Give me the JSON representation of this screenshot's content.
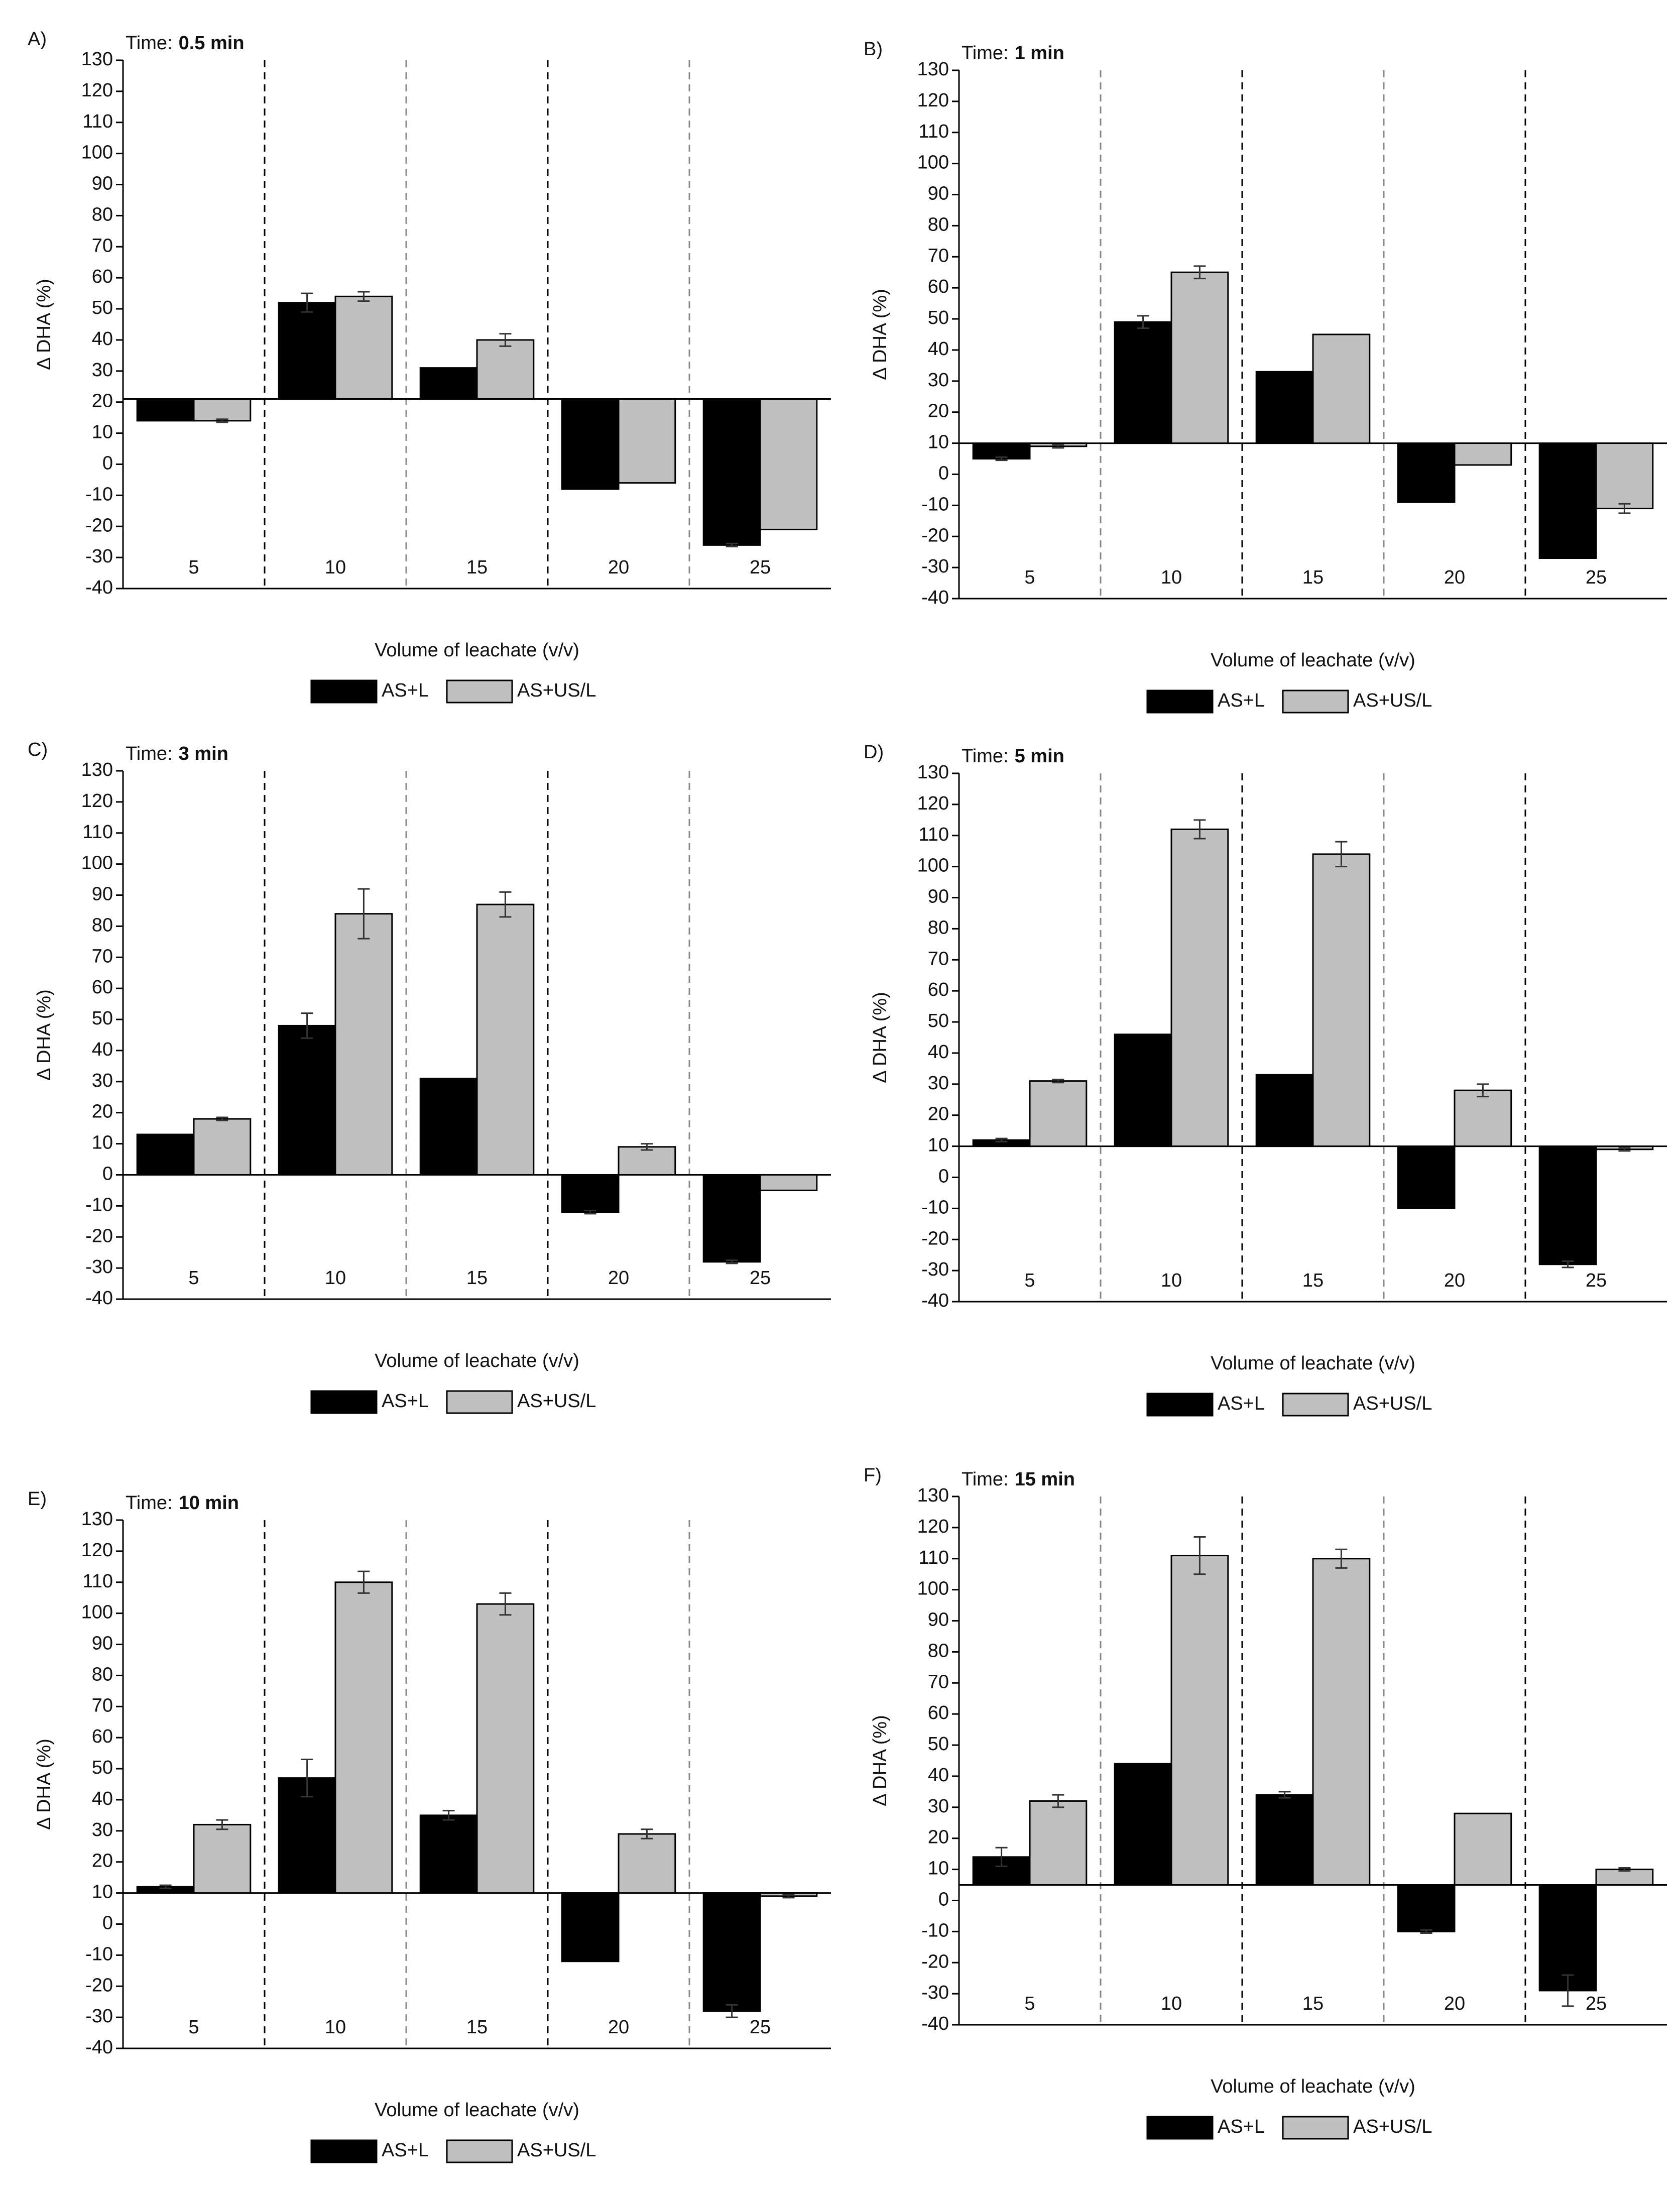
{
  "chart_data": [
    {
      "type": "bar",
      "panel": "A)",
      "time_label": "Time:",
      "title": "0.5 min",
      "baseline": 21,
      "categories": [
        "5",
        "10",
        "15",
        "20",
        "25"
      ],
      "series": [
        {
          "name": "AS+L",
          "color": "#000000",
          "values": [
            14,
            52,
            31,
            -8,
            -26
          ],
          "errors": [
            0,
            3,
            0,
            0,
            0.5
          ]
        },
        {
          "name": "AS+US/L",
          "color": "#c0c0c0",
          "values": [
            14,
            54,
            40,
            -6,
            -21
          ],
          "errors": [
            0.5,
            1.5,
            2,
            0,
            0
          ]
        }
      ],
      "ylim": [
        -40,
        130
      ],
      "yticks": [
        -40,
        -30,
        -20,
        -10,
        0,
        10,
        20,
        30,
        40,
        50,
        60,
        70,
        80,
        90,
        100,
        110,
        120,
        130
      ],
      "xlabel": "Volume of leachate (v/v)",
      "ylabel": "Δ DHA (%)"
    },
    {
      "type": "bar",
      "panel": "B)",
      "time_label": "Time:",
      "title": "1 min",
      "baseline": 10,
      "categories": [
        "5",
        "10",
        "15",
        "20",
        "25"
      ],
      "series": [
        {
          "name": "AS+L",
          "color": "#000000",
          "values": [
            5,
            49,
            33,
            -9,
            -27
          ],
          "errors": [
            0.5,
            2,
            0,
            0,
            0
          ]
        },
        {
          "name": "AS+US/L",
          "color": "#c0c0c0",
          "values": [
            9,
            65,
            45,
            3,
            -11
          ],
          "errors": [
            0.5,
            2,
            0,
            0,
            1.5
          ]
        }
      ],
      "ylim": [
        -40,
        130
      ],
      "yticks": [
        -40,
        -30,
        -20,
        -10,
        0,
        10,
        20,
        30,
        40,
        50,
        60,
        70,
        80,
        90,
        100,
        110,
        120,
        130
      ],
      "xlabel": "Volume of leachate (v/v)",
      "ylabel": "Δ DHA (%)"
    },
    {
      "type": "bar",
      "panel": "C)",
      "time_label": "Time:",
      "title": "3 min",
      "baseline": 0,
      "categories": [
        "5",
        "10",
        "15",
        "20",
        "25"
      ],
      "series": [
        {
          "name": "AS+L",
          "color": "#000000",
          "values": [
            13,
            48,
            31,
            -12,
            -28
          ],
          "errors": [
            0,
            4,
            0,
            0.5,
            0.5
          ]
        },
        {
          "name": "AS+US/L",
          "color": "#c0c0c0",
          "values": [
            18,
            84,
            87,
            9,
            -5
          ],
          "errors": [
            0.5,
            8,
            4,
            1,
            0
          ]
        }
      ],
      "ylim": [
        -40,
        130
      ],
      "yticks": [
        -40,
        -30,
        -20,
        -10,
        0,
        10,
        20,
        30,
        40,
        50,
        60,
        70,
        80,
        90,
        100,
        110,
        120,
        130
      ],
      "xlabel": "Volume of leachate (v/v)",
      "ylabel": "Δ DHA (%)"
    },
    {
      "type": "bar",
      "panel": "D)",
      "time_label": "Time:",
      "title": "5 min",
      "baseline": 10,
      "categories": [
        "5",
        "10",
        "15",
        "20",
        "25"
      ],
      "series": [
        {
          "name": "AS+L",
          "color": "#000000",
          "values": [
            12,
            46,
            33,
            -10,
            -28
          ],
          "errors": [
            0.5,
            0,
            0,
            0,
            1
          ]
        },
        {
          "name": "AS+US/L",
          "color": "#c0c0c0",
          "values": [
            31,
            112,
            104,
            28,
            9
          ],
          "errors": [
            0.5,
            3,
            4,
            2,
            0.5
          ]
        }
      ],
      "ylim": [
        -40,
        130
      ],
      "yticks": [
        -40,
        -30,
        -20,
        -10,
        0,
        10,
        20,
        30,
        40,
        50,
        60,
        70,
        80,
        90,
        100,
        110,
        120,
        130
      ],
      "xlabel": "Volume of leachate (v/v)",
      "ylabel": "Δ DHA (%)"
    },
    {
      "type": "bar",
      "panel": "E)",
      "time_label": "Time:",
      "title": "10 min",
      "baseline": 10,
      "categories": [
        "5",
        "10",
        "15",
        "20",
        "25"
      ],
      "series": [
        {
          "name": "AS+L",
          "color": "#000000",
          "values": [
            12,
            47,
            35,
            -12,
            -28
          ],
          "errors": [
            0.5,
            6,
            1.5,
            0,
            2
          ]
        },
        {
          "name": "AS+US/L",
          "color": "#c0c0c0",
          "values": [
            32,
            110,
            103,
            29,
            9
          ],
          "errors": [
            1.5,
            3.5,
            3.5,
            1.5,
            0.5
          ]
        }
      ],
      "ylim": [
        -40,
        130
      ],
      "yticks": [
        -40,
        -30,
        -20,
        -10,
        0,
        10,
        20,
        30,
        40,
        50,
        60,
        70,
        80,
        90,
        100,
        110,
        120,
        130
      ],
      "xlabel": "Volume of leachate (v/v)",
      "ylabel": "Δ DHA (%)"
    },
    {
      "type": "bar",
      "panel": "F)",
      "time_label": "Time:",
      "title": "15 min",
      "baseline": 5,
      "categories": [
        "5",
        "10",
        "15",
        "20",
        "25"
      ],
      "series": [
        {
          "name": "AS+L",
          "color": "#000000",
          "values": [
            14,
            44,
            34,
            -10,
            -29
          ],
          "errors": [
            3,
            0,
            1,
            0.5,
            5
          ]
        },
        {
          "name": "AS+US/L",
          "color": "#c0c0c0",
          "values": [
            32,
            111,
            110,
            28,
            10
          ],
          "errors": [
            2,
            6,
            3,
            0,
            0.5
          ]
        }
      ],
      "ylim": [
        -40,
        130
      ],
      "yticks": [
        -40,
        -30,
        -20,
        -10,
        0,
        10,
        20,
        30,
        40,
        50,
        60,
        70,
        80,
        90,
        100,
        110,
        120,
        130
      ],
      "xlabel": "Volume of leachate (v/v)",
      "ylabel": "Δ DHA (%)"
    }
  ]
}
